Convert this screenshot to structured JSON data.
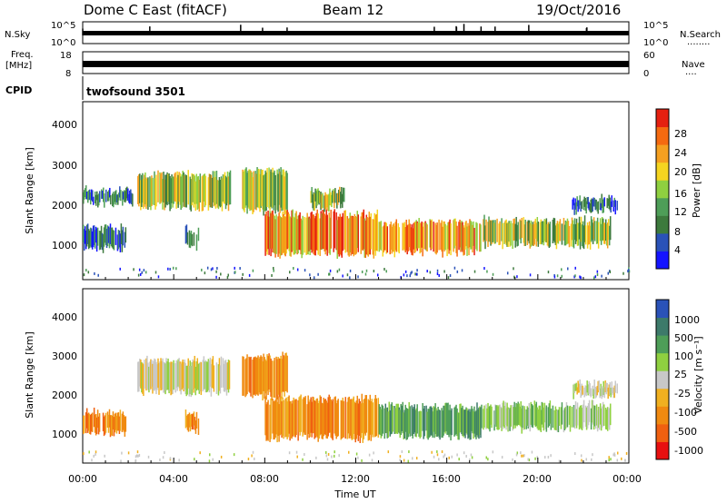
{
  "header": {
    "station": "Dome C East (fitACF)",
    "beam": "Beam 12",
    "date": "19/Oct/2016"
  },
  "sky_panel": {
    "left_label": "N.Sky",
    "right_label": "N.Search",
    "right_dots": "........",
    "left_ticks": [
      "10^5",
      "10^0"
    ],
    "right_ticks": [
      "10^5",
      "10^0"
    ]
  },
  "freq_panel": {
    "left_label_line1": "Freq.",
    "left_label_line2": "[MHz]",
    "right_label": "Nave",
    "right_dots": "....",
    "left_ticks": [
      "18",
      "8"
    ],
    "right_ticks": [
      "60",
      "0"
    ]
  },
  "cpid": {
    "label": "CPID",
    "value": "twofsound 3501"
  },
  "x_axis": {
    "label": "Time UT",
    "ticks": [
      "00:00",
      "04:00",
      "08:00",
      "12:00",
      "16:00",
      "20:00",
      "00:00"
    ]
  },
  "colors": {
    "power_scale": [
      "#1414ff",
      "#2a52b8",
      "#3d7a3d",
      "#4e9e58",
      "#8fd040",
      "#f5d520",
      "#f5a020",
      "#f56a10",
      "#e52010"
    ],
    "velocity_scale": [
      "#e81010",
      "#f06010",
      "#f08a10",
      "#f0b020",
      "#c8c8c8",
      "#8fd040",
      "#4e9e58",
      "#3d7a6a",
      "#2a52b8"
    ]
  },
  "chart_data": [
    {
      "type": "heatmap",
      "title": "",
      "xlabel": "Time UT",
      "ylabel": "Slant Range [km]",
      "x_range_hours": [
        0,
        24
      ],
      "ylim": [
        0,
        4500
      ],
      "yticks": [
        "1000",
        "2000",
        "3000",
        "4000"
      ],
      "colorbar": {
        "label": "Power [dB]",
        "ticks": [
          "4",
          "8",
          "12",
          "16",
          "20",
          "24",
          "28"
        ],
        "range": [
          0,
          32
        ]
      },
      "echo_regions": [
        {
          "t_start": 0.0,
          "t_end": 1.9,
          "range_low": 750,
          "range_high": 1350,
          "level": "low"
        },
        {
          "t_start": 0.0,
          "t_end": 2.2,
          "range_low": 1900,
          "range_high": 2300,
          "level": "low"
        },
        {
          "t_start": 2.4,
          "t_end": 6.5,
          "range_low": 1800,
          "range_high": 2700,
          "level": "mid"
        },
        {
          "t_start": 4.5,
          "t_end": 5.1,
          "range_low": 800,
          "range_high": 1300,
          "level": "low"
        },
        {
          "t_start": 7.0,
          "t_end": 9.0,
          "range_low": 1700,
          "range_high": 2800,
          "level": "mid"
        },
        {
          "t_start": 8.0,
          "t_end": 13.0,
          "range_low": 600,
          "range_high": 1700,
          "level": "high"
        },
        {
          "t_start": 10.0,
          "t_end": 11.5,
          "range_low": 1800,
          "range_high": 2300,
          "level": "mid"
        },
        {
          "t_start": 13.0,
          "t_end": 17.5,
          "range_low": 650,
          "range_high": 1500,
          "level": "high"
        },
        {
          "t_start": 17.5,
          "t_end": 23.2,
          "range_low": 850,
          "range_high": 1550,
          "level": "mid"
        },
        {
          "t_start": 21.5,
          "t_end": 23.5,
          "range_low": 1700,
          "range_high": 2100,
          "level": "low"
        }
      ]
    },
    {
      "type": "heatmap",
      "title": "",
      "xlabel": "Time UT",
      "ylabel": "Slant Range [km]",
      "x_range_hours": [
        0,
        24
      ],
      "ylim": [
        0,
        4500
      ],
      "yticks": [
        "1000",
        "2000",
        "3000",
        "4000"
      ],
      "colorbar": {
        "label": "Velocity [m s⁻¹]",
        "ticks": [
          "1000",
          "500",
          "100",
          "25",
          "-25",
          "-100",
          "-500",
          "-1000"
        ],
        "range": [
          -1000,
          1000
        ]
      },
      "echo_regions": [
        {
          "t_start": 0.0,
          "t_end": 1.9,
          "range_low": 750,
          "range_high": 1350,
          "level": "-300"
        },
        {
          "t_start": 2.4,
          "t_end": 6.5,
          "range_low": 1800,
          "range_high": 2700,
          "level": "0"
        },
        {
          "t_start": 4.5,
          "t_end": 5.1,
          "range_low": 800,
          "range_high": 1300,
          "level": "-300"
        },
        {
          "t_start": 7.0,
          "t_end": 9.0,
          "range_low": 1700,
          "range_high": 2800,
          "level": "-150"
        },
        {
          "t_start": 8.0,
          "t_end": 13.0,
          "range_low": 600,
          "range_high": 1700,
          "level": "-400"
        },
        {
          "t_start": 13.0,
          "t_end": 17.5,
          "range_low": 650,
          "range_high": 1500,
          "level": "100"
        },
        {
          "t_start": 17.5,
          "t_end": 23.2,
          "range_low": 850,
          "range_high": 1550,
          "level": "80"
        },
        {
          "t_start": 21.5,
          "t_end": 23.5,
          "range_low": 1700,
          "range_high": 2100,
          "level": "0"
        }
      ]
    }
  ]
}
